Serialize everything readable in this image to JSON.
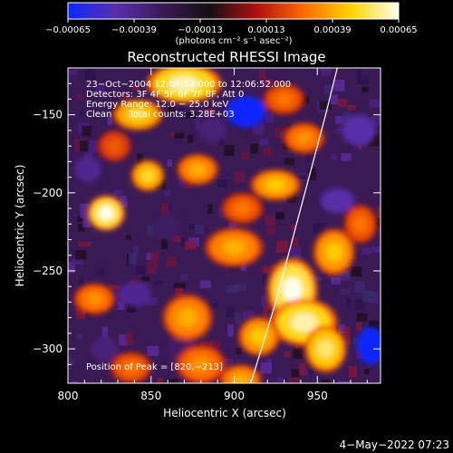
{
  "chart_data": {
    "type": "heatmap",
    "title": "Reconstructed RHESSI Image",
    "xlabel": "Heliocentric X (arcsec)",
    "ylabel": "Heliocentric Y (arcsec)",
    "xlim": [
      800,
      988
    ],
    "ylim": [
      -322,
      -120
    ],
    "x_ticks": [
      800,
      850,
      900,
      950
    ],
    "y_ticks": [
      -150,
      -200,
      -250,
      -300
    ],
    "x_tick_labels": [
      "800",
      "850",
      "900",
      "950"
    ],
    "y_tick_labels": [
      "−150",
      "−200",
      "−250",
      "−300"
    ],
    "colorbar": {
      "min": -0.00065,
      "max": 0.00065,
      "ticks": [
        -0.00065,
        -0.00039,
        -0.00013,
        0.00013,
        0.00039,
        0.00065
      ],
      "tick_labels": [
        "−0.00065",
        "−0.00039",
        "−0.00013",
        "0.00013",
        "0.00039",
        "0.00065"
      ],
      "units_label": "(photons cm⁻² s⁻¹ asec⁻²)",
      "colors": [
        "#0a28ff",
        "#5a2fb0",
        "#3a1a55",
        "#121012",
        "#b01010",
        "#ff6a00",
        "#ffd400",
        "#ffffee"
      ]
    },
    "annotations": [
      "23−Oct−2004 12:04:52.000 to 12:06:52.000",
      "Detectors: 3F 4F 5F 6F 7F 8F, Att 0",
      "Energy Range: 12.0 − 25.0 keV",
      "Clean      Total counts: 3.28E+03"
    ],
    "peak_text": "Position of Peak = [820,−213]",
    "limb_curve": [
      [
        910,
        -322
      ],
      [
        925,
        -270
      ],
      [
        940,
        -210
      ],
      [
        955,
        -150
      ],
      [
        962,
        -120
      ]
    ],
    "hotspots": [
      {
        "x": 870,
        "y": -130,
        "value": 0.0006,
        "rx": 18,
        "ry": 10
      },
      {
        "x": 842,
        "y": -150,
        "value": 0.0005,
        "rx": 12,
        "ry": 8
      },
      {
        "x": 823,
        "y": -213,
        "value": 0.00065,
        "rx": 9,
        "ry": 9
      },
      {
        "x": 848,
        "y": -189,
        "value": 0.0005,
        "rx": 8,
        "ry": 8
      },
      {
        "x": 878,
        "y": -185,
        "value": 0.0004,
        "rx": 10,
        "ry": 8
      },
      {
        "x": 925,
        "y": -195,
        "value": 0.00045,
        "rx": 12,
        "ry": 8
      },
      {
        "x": 900,
        "y": -235,
        "value": 0.0004,
        "rx": 14,
        "ry": 10
      },
      {
        "x": 960,
        "y": -238,
        "value": 0.00045,
        "rx": 10,
        "ry": 12
      },
      {
        "x": 935,
        "y": -262,
        "value": 0.00065,
        "rx": 12,
        "ry": 16
      },
      {
        "x": 942,
        "y": -283,
        "value": 0.0006,
        "rx": 16,
        "ry": 12
      },
      {
        "x": 955,
        "y": -300,
        "value": 0.00055,
        "rx": 10,
        "ry": 12
      },
      {
        "x": 915,
        "y": -292,
        "value": 0.00045,
        "rx": 10,
        "ry": 10
      },
      {
        "x": 872,
        "y": -280,
        "value": 0.0004,
        "rx": 12,
        "ry": 12
      },
      {
        "x": 880,
        "y": -310,
        "value": 0.00035,
        "rx": 12,
        "ry": 10
      },
      {
        "x": 816,
        "y": -268,
        "value": 0.00035,
        "rx": 10,
        "ry": 8
      },
      {
        "x": 904,
        "y": -320,
        "value": 0.0004,
        "rx": 10,
        "ry": 8
      },
      {
        "x": 942,
        "y": -165,
        "value": 0.00035,
        "rx": 10,
        "ry": 8
      },
      {
        "x": 905,
        "y": -210,
        "value": 0.0003,
        "rx": 10,
        "ry": 8
      },
      {
        "x": 828,
        "y": -170,
        "value": 0.00025,
        "rx": 8,
        "ry": 8
      },
      {
        "x": 930,
        "y": -140,
        "value": 0.0003,
        "rx": 10,
        "ry": 8
      },
      {
        "x": 976,
        "y": -220,
        "value": 0.0003,
        "rx": 8,
        "ry": 10
      },
      {
        "x": 838,
        "y": -312,
        "value": 0.0003,
        "rx": 10,
        "ry": 8
      }
    ],
    "coldspots": [
      {
        "x": 907,
        "y": -148,
        "value": -0.00065,
        "rx": 12,
        "ry": 10
      },
      {
        "x": 982,
        "y": -298,
        "value": -0.00065,
        "rx": 8,
        "ry": 12
      },
      {
        "x": 962,
        "y": -205,
        "value": -0.00045,
        "rx": 10,
        "ry": 8
      },
      {
        "x": 840,
        "y": -265,
        "value": -0.0004,
        "rx": 10,
        "ry": 8
      },
      {
        "x": 812,
        "y": -185,
        "value": -0.0004,
        "rx": 8,
        "ry": 8
      },
      {
        "x": 860,
        "y": -222,
        "value": -0.0003,
        "rx": 8,
        "ry": 8
      },
      {
        "x": 887,
        "y": -160,
        "value": -0.00035,
        "rx": 8,
        "ry": 8
      },
      {
        "x": 822,
        "y": -300,
        "value": -0.00035,
        "rx": 8,
        "ry": 8
      },
      {
        "x": 975,
        "y": -160,
        "value": -0.00045,
        "rx": 10,
        "ry": 10
      },
      {
        "x": 868,
        "y": -300,
        "value": -0.0003,
        "rx": 8,
        "ry": 8
      }
    ]
  },
  "timestamp": "4−May−2022 07:23"
}
